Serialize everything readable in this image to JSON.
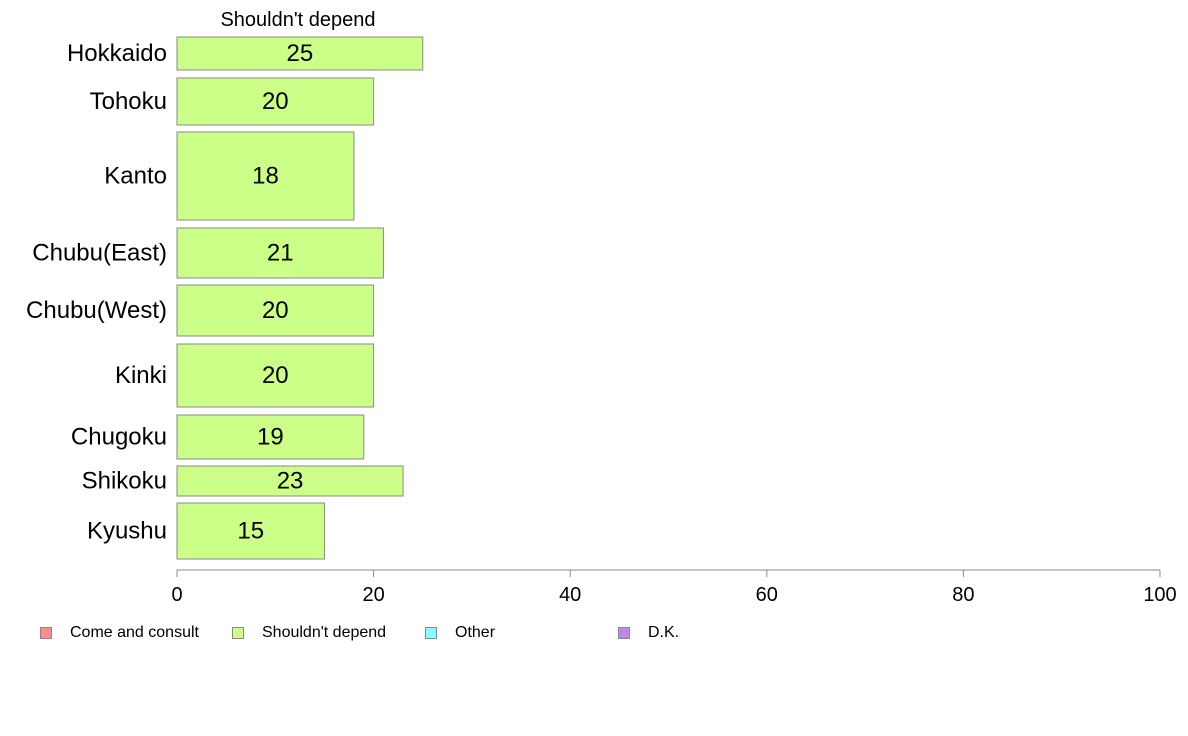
{
  "chart_data": {
    "type": "bar",
    "orientation": "horizontal",
    "panel_title": "Shouldn't depend",
    "categories": [
      "Hokkaido",
      "Tohoku",
      "Kanto",
      "Chubu(East)",
      "Chubu(West)",
      "Kinki",
      "Chugoku",
      "Shikoku",
      "Kyushu"
    ],
    "series": [
      {
        "name": "Shouldn't depend",
        "values": [
          25,
          20,
          18,
          21,
          20,
          20,
          19,
          23,
          15
        ],
        "color": "#ccff88"
      }
    ],
    "value_labels": [
      "25",
      "20",
      "18",
      "21",
      "20",
      "20",
      "19",
      "23",
      "15"
    ],
    "xlim": [
      0,
      100
    ],
    "x_ticks": [
      "0",
      "20",
      "40",
      "60",
      "80",
      "100"
    ],
    "grid": false,
    "legend_position": "bottom",
    "legend": [
      {
        "label": "Come and consult",
        "color": "#ff8c8c"
      },
      {
        "label": "Shouldn't depend",
        "color": "#ccff88"
      },
      {
        "label": "Other",
        "color": "#88ffff"
      },
      {
        "label": "D.K.",
        "color": "#bb88ee"
      }
    ]
  }
}
